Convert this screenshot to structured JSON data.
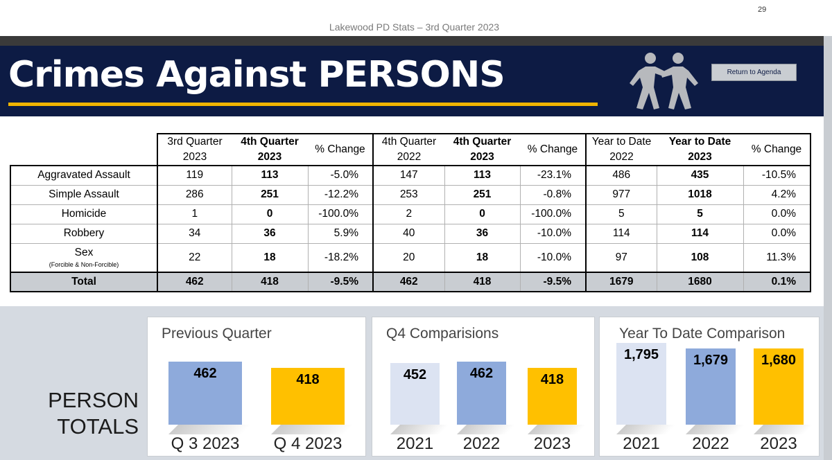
{
  "page_number": "29",
  "slide_subtitle": "Lakewood PD Stats – 3rd Quarter 2023",
  "banner": {
    "title": "Crimes Against PERSONS",
    "return_button": "Return to Agenda"
  },
  "table": {
    "groups": [
      {
        "prev_label": "3rd Quarter",
        "prev_year": "2023",
        "cur_label": "4th Quarter",
        "cur_year": "2023",
        "change_label": "% Change"
      },
      {
        "prev_label": "4th Quarter",
        "prev_year": "2022",
        "cur_label": "4th Quarter",
        "cur_year": "2023",
        "change_label": "% Change"
      },
      {
        "prev_label": "Year to Date",
        "prev_year": "2022",
        "cur_label": "Year to Date",
        "cur_year": "2023",
        "change_label": "% Change"
      }
    ],
    "rows": [
      {
        "label": "Aggravated Assault",
        "sublabel": "",
        "values": [
          "119",
          "113",
          "-5.0%",
          "147",
          "113",
          "-23.1%",
          "486",
          "435",
          "-10.5%"
        ]
      },
      {
        "label": "Simple Assault",
        "sublabel": "",
        "values": [
          "286",
          "251",
          "-12.2%",
          "253",
          "251",
          "-0.8%",
          "977",
          "1018",
          "4.2%"
        ]
      },
      {
        "label": "Homicide",
        "sublabel": "",
        "values": [
          "1",
          "0",
          "-100.0%",
          "2",
          "0",
          "-100.0%",
          "5",
          "5",
          "0.0%"
        ]
      },
      {
        "label": "Robbery",
        "sublabel": "",
        "values": [
          "34",
          "36",
          "5.9%",
          "40",
          "36",
          "-10.0%",
          "114",
          "114",
          "0.0%"
        ]
      },
      {
        "label": "Sex",
        "sublabel": "(Forcible & Non-Forcible)",
        "values": [
          "22",
          "18",
          "-18.2%",
          "20",
          "18",
          "-10.0%",
          "97",
          "108",
          "11.3%"
        ]
      }
    ],
    "total": {
      "label": "Total",
      "values": [
        "462",
        "418",
        "-9.5%",
        "462",
        "418",
        "-9.5%",
        "1679",
        "1680",
        "0.1%"
      ]
    }
  },
  "person_totals_label": [
    "PERSON",
    "TOTALS"
  ],
  "colors": {
    "banner": "#0d1b44",
    "accent": "#f0b400",
    "light_bar": "#dce3f2",
    "mid_bar": "#8eaadb",
    "gold_bar": "#ffc000",
    "panel": "#d5dae1",
    "total_row": "#c9cdd2"
  },
  "chart_data": [
    {
      "type": "bar",
      "title": "Previous Quarter",
      "categories": [
        "Q 3 2023",
        "Q 4 2023"
      ],
      "values": [
        462,
        418
      ],
      "data_labels": [
        "462",
        "418"
      ],
      "bar_colors": [
        "#8eaadb",
        "#ffc000"
      ],
      "ylim": [
        0,
        520
      ]
    },
    {
      "type": "bar",
      "title": "Q4 Comparisions",
      "categories": [
        "2021",
        "2022",
        "2023"
      ],
      "values": [
        452,
        462,
        418
      ],
      "data_labels": [
        "452",
        "462",
        "418"
      ],
      "bar_colors": [
        "#dce3f2",
        "#8eaadb",
        "#ffc000"
      ],
      "ylim": [
        0,
        520
      ]
    },
    {
      "type": "bar",
      "title": "Year To Date Comparison",
      "categories": [
        "2021",
        "2022",
        "2023"
      ],
      "values": [
        1795,
        1679,
        1680
      ],
      "data_labels": [
        "1,795",
        "1,679",
        "1,680"
      ],
      "bar_colors": [
        "#dce3f2",
        "#8eaadb",
        "#ffc000"
      ],
      "ylim": [
        0,
        1800
      ]
    }
  ]
}
